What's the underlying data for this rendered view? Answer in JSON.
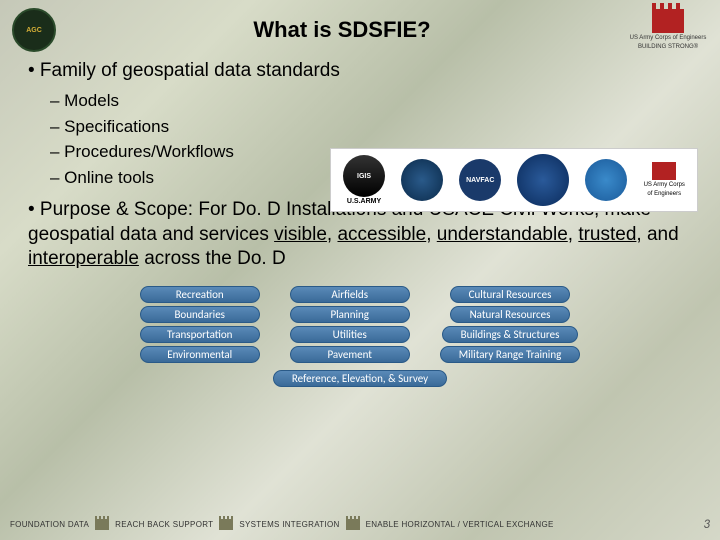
{
  "header": {
    "title": "What is SDSFIE?",
    "agc_label": "AGC",
    "usace_line1": "US Army Corps of Engineers",
    "usace_line2": "BUILDING STRONG®"
  },
  "bullets": {
    "main1": "• Family of geospatial data standards",
    "sub1": "– Models",
    "sub2": "– Specifications",
    "sub3": "– Procedures/Workflows",
    "sub4": "– Online tools",
    "purpose_prefix": "• Purpose & Scope:  For Do. D Installations and USACE Civil Works, make geospatial data and services ",
    "w1": "visible",
    "c1": ", ",
    "w2": "accessible",
    "c2": ", ",
    "w3": "understandable",
    "c3": ", ",
    "w4": "trusted",
    "c4": ", and ",
    "w5": "interoperable",
    "suffix": " across the Do. D"
  },
  "logo_row": {
    "igis": "IGIS",
    "usarmy": "U.S.ARMY",
    "navfac": "NAVFAC",
    "usace1": "US Army Corps",
    "usace2": "of Engineers"
  },
  "pills": {
    "col1": [
      "Recreation",
      "Boundaries",
      "Transportation",
      "Environmental"
    ],
    "col2": [
      "Airfields",
      "Planning",
      "Utilities",
      "Pavement"
    ],
    "col3": [
      "Cultural Resources",
      "Natural Resources",
      "Buildings & Structures",
      "Military Range Training"
    ],
    "bottom": "Reference, Elevation, & Survey"
  },
  "footer": {
    "f1": "FOUNDATION DATA",
    "f2": "REACH BACK SUPPORT",
    "f3": "SYSTEMS INTEGRATION",
    "f4": "ENABLE HORIZONTAL / VERTICAL EXCHANGE",
    "page": "3"
  },
  "colors": {
    "pill_bg_top": "#5a8ab8",
    "pill_bg_bottom": "#3a6a98",
    "castle": "#b22222"
  }
}
